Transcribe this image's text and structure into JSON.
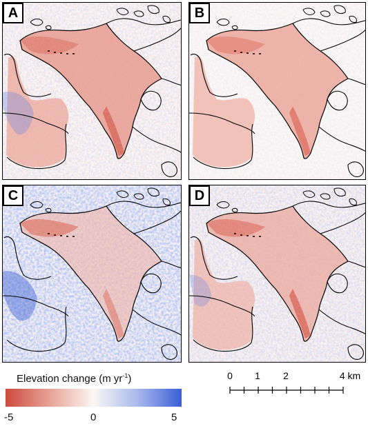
{
  "panels": [
    {
      "label": "A"
    },
    {
      "label": "B"
    },
    {
      "label": "C"
    },
    {
      "label": "D"
    }
  ],
  "legend": {
    "title_prefix": "Elevation change (m yr",
    "title_exp": "-1",
    "title_suffix": ")",
    "ticks": [
      "-5",
      "0",
      "5"
    ],
    "colors": {
      "min": "#cc4a3e",
      "mid": "#fbf7f5",
      "max": "#3a5fd6"
    }
  },
  "scalebar": {
    "labels": [
      "0",
      "1",
      "2",
      "4 km"
    ],
    "values_km": [
      0,
      1,
      2,
      4
    ]
  }
}
